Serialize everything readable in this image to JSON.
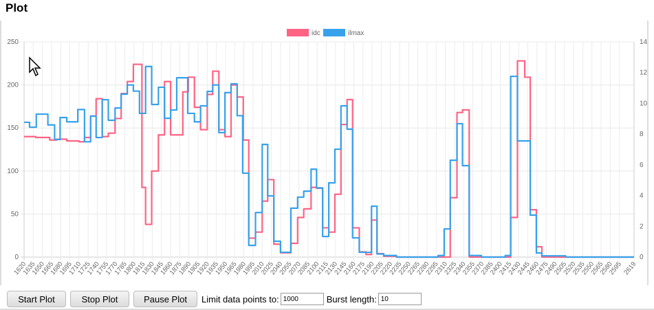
{
  "page_title": "Plot",
  "controls": {
    "start_label": "Start Plot",
    "stop_label": "Stop Plot",
    "pause_label": "Pause Plot",
    "limit_label": "Limit data points to:",
    "limit_value": "1000",
    "burst_label": "Burst length:",
    "burst_value": "10"
  },
  "chart_data": {
    "type": "line",
    "stepped": true,
    "legend_position": "top",
    "x_range": [
      1620,
      2619
    ],
    "x_ticks": [
      1620,
      1635,
      1650,
      1665,
      1680,
      1695,
      1710,
      1725,
      1740,
      1755,
      1770,
      1785,
      1800,
      1815,
      1830,
      1845,
      1860,
      1875,
      1890,
      1905,
      1920,
      1935,
      1950,
      1965,
      1980,
      1995,
      2010,
      2025,
      2040,
      2055,
      2070,
      2085,
      2100,
      2115,
      2130,
      2145,
      2160,
      2175,
      2190,
      2205,
      2220,
      2235,
      2250,
      2265,
      2280,
      2295,
      2310,
      2325,
      2340,
      2355,
      2370,
      2385,
      2400,
      2415,
      2430,
      2445,
      2460,
      2475,
      2490,
      2505,
      2520,
      2535,
      2550,
      2565,
      2580,
      2595,
      2619
    ],
    "y_left": {
      "range": [
        0,
        250
      ],
      "ticks": [
        0,
        50,
        100,
        150,
        200,
        250
      ]
    },
    "y_right": {
      "range": [
        0,
        14
      ],
      "ticks": [
        0,
        2,
        4,
        6,
        8,
        10,
        12,
        14
      ]
    },
    "grid": true,
    "series": [
      {
        "name": "idc",
        "color": "#ff6384",
        "axis": "left",
        "steps": [
          [
            1620,
            140
          ],
          [
            1639,
            139
          ],
          [
            1662,
            136
          ],
          [
            1673,
            137
          ],
          [
            1690,
            135
          ],
          [
            1710,
            134
          ],
          [
            1719,
            139
          ],
          [
            1729,
            164
          ],
          [
            1738,
            184
          ],
          [
            1748,
            140
          ],
          [
            1758,
            144
          ],
          [
            1769,
            161
          ],
          [
            1779,
            190
          ],
          [
            1789,
            204
          ],
          [
            1799,
            224
          ],
          [
            1813,
            81
          ],
          [
            1819,
            38
          ],
          [
            1829,
            100
          ],
          [
            1840,
            142
          ],
          [
            1850,
            204
          ],
          [
            1860,
            142
          ],
          [
            1880,
            192
          ],
          [
            1889,
            209
          ],
          [
            1899,
            174
          ],
          [
            1909,
            148
          ],
          [
            1920,
            189
          ],
          [
            1929,
            216
          ],
          [
            1939,
            148
          ],
          [
            1949,
            140
          ],
          [
            1959,
            200
          ],
          [
            1969,
            186
          ],
          [
            1979,
            136
          ],
          [
            1988,
            22
          ],
          [
            1999,
            29
          ],
          [
            2010,
            65
          ],
          [
            2019,
            90
          ],
          [
            2029,
            15
          ],
          [
            2040,
            5
          ],
          [
            2057,
            16
          ],
          [
            2068,
            46
          ],
          [
            2078,
            56
          ],
          [
            2090,
            81
          ],
          [
            2099,
            80
          ],
          [
            2109,
            34
          ],
          [
            2119,
            29
          ],
          [
            2129,
            73
          ],
          [
            2139,
            154
          ],
          [
            2149,
            183
          ],
          [
            2158,
            34
          ],
          [
            2169,
            6
          ],
          [
            2180,
            3
          ],
          [
            2189,
            43
          ],
          [
            2198,
            4
          ],
          [
            2209,
            1
          ],
          [
            2230,
            0
          ],
          [
            2318,
            69
          ],
          [
            2329,
            168
          ],
          [
            2338,
            171
          ],
          [
            2349,
            0
          ],
          [
            2417,
            46
          ],
          [
            2428,
            228
          ],
          [
            2440,
            209
          ],
          [
            2449,
            55
          ],
          [
            2459,
            12
          ],
          [
            2468,
            0
          ]
        ]
      },
      {
        "name": "ilmax",
        "color": "#36a2eb",
        "axis": "right",
        "steps": [
          [
            1620,
            8.77
          ],
          [
            1629,
            8.45
          ],
          [
            1640,
            9.3
          ],
          [
            1659,
            8.6
          ],
          [
            1670,
            7.65
          ],
          [
            1679,
            9.08
          ],
          [
            1690,
            8.8
          ],
          [
            1708,
            9.6
          ],
          [
            1719,
            7.5
          ],
          [
            1729,
            9.17
          ],
          [
            1738,
            7.78
          ],
          [
            1748,
            10.24
          ],
          [
            1758,
            8.9
          ],
          [
            1769,
            9.7
          ],
          [
            1779,
            10.6
          ],
          [
            1789,
            11.2
          ],
          [
            1799,
            10.8
          ],
          [
            1809,
            9.35
          ],
          [
            1819,
            12.4
          ],
          [
            1829,
            9.93
          ],
          [
            1840,
            11.05
          ],
          [
            1850,
            9.03
          ],
          [
            1860,
            9.57
          ],
          [
            1870,
            11.67
          ],
          [
            1888,
            9.35
          ],
          [
            1899,
            8.8
          ],
          [
            1909,
            9.84
          ],
          [
            1920,
            10.78
          ],
          [
            1929,
            11.2
          ],
          [
            1939,
            8.1
          ],
          [
            1949,
            10.7
          ],
          [
            1959,
            11.27
          ],
          [
            1969,
            9.2
          ],
          [
            1978,
            5.46
          ],
          [
            1988,
            0.76
          ],
          [
            1999,
            2.9
          ],
          [
            2010,
            7.33
          ],
          [
            2019,
            3.98
          ],
          [
            2029,
            1.03
          ],
          [
            2040,
            0.31
          ],
          [
            2057,
            3.18
          ],
          [
            2068,
            3.9
          ],
          [
            2078,
            4.29
          ],
          [
            2090,
            5.72
          ],
          [
            2099,
            4.5
          ],
          [
            2109,
            1.34
          ],
          [
            2119,
            4.83
          ],
          [
            2129,
            7.02
          ],
          [
            2139,
            9.84
          ],
          [
            2149,
            8.32
          ],
          [
            2158,
            1.25
          ],
          [
            2169,
            0.31
          ],
          [
            2189,
            3.31
          ],
          [
            2198,
            0.2
          ],
          [
            2209,
            0.1
          ],
          [
            2230,
            0
          ],
          [
            2298,
            0.1
          ],
          [
            2308,
            1.83
          ],
          [
            2318,
            6.3
          ],
          [
            2329,
            8.68
          ],
          [
            2338,
            5.95
          ],
          [
            2349,
            0.1
          ],
          [
            2369,
            0
          ],
          [
            2408,
            0.1
          ],
          [
            2417,
            11.76
          ],
          [
            2428,
            7.56
          ],
          [
            2449,
            2.73
          ],
          [
            2459,
            0.27
          ],
          [
            2468,
            0.08
          ],
          [
            2507,
            0
          ]
        ]
      }
    ]
  }
}
